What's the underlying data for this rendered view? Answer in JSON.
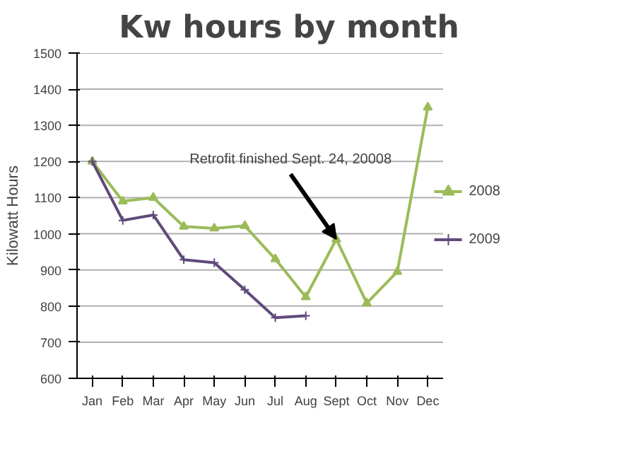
{
  "chart_data": {
    "type": "line",
    "title": "Kw hours by month",
    "ylabel": "Kilowatt Hours",
    "categories": [
      "Jan",
      "Feb",
      "Mar",
      "Apr",
      "May",
      "Jun",
      "Jul",
      "Aug",
      "Sept",
      "Oct",
      "Nov",
      "Dec"
    ],
    "series": [
      {
        "name": "2008",
        "color": "#9bbb59",
        "marker": "triangle",
        "values": [
          1200,
          1090,
          1100,
          1020,
          1015,
          1022,
          930,
          825,
          985,
          808,
          895,
          1350
        ]
      },
      {
        "name": "2009",
        "color": "#604a7b",
        "marker": "cross",
        "values": [
          1200,
          1037,
          1052,
          928,
          920,
          845,
          768,
          773,
          null,
          null,
          null,
          null
        ]
      }
    ],
    "ylim": [
      600,
      1500
    ],
    "yticks": [
      600,
      700,
      800,
      900,
      1000,
      1100,
      1200,
      1300,
      1400,
      1500
    ],
    "grid": "y",
    "legend": "right",
    "annotations": [
      {
        "text": "Retrofit finished Sept. 24, 20008",
        "x": "Sept",
        "y": 985
      }
    ]
  }
}
